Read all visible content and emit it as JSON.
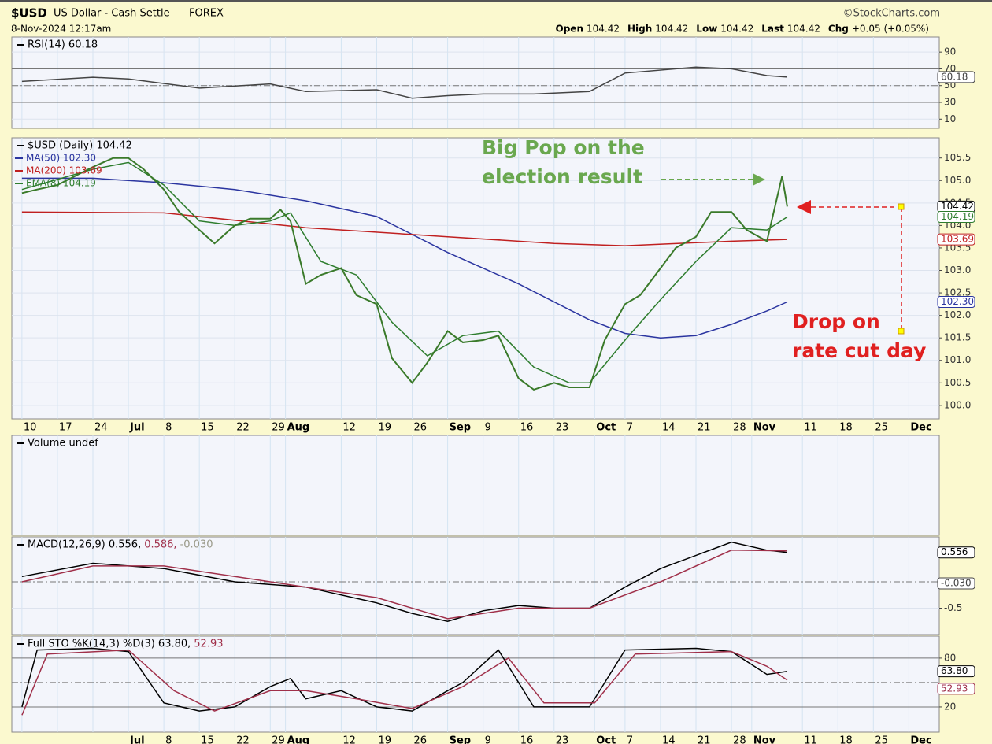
{
  "header": {
    "symbol": "$USD",
    "name": "US Dollar - Cash Settle",
    "exchange": "FOREX",
    "brand": "©StockCharts.com",
    "date": "8-Nov-2024 12:17am",
    "quote": [
      {
        "k": "Open",
        "v": "104.42"
      },
      {
        "k": "High",
        "v": "104.42"
      },
      {
        "k": "Low",
        "v": "104.42"
      },
      {
        "k": "Last",
        "v": "104.42"
      },
      {
        "k": "Chg",
        "v": "+0.05 (+0.05%)"
      }
    ]
  },
  "chart_data": [
    {
      "type": "line",
      "title": "RSI(14) 60.18",
      "xlim": [
        -2,
        181
      ],
      "ylim": [
        -1,
        108
      ],
      "yticks": [
        10,
        30,
        50,
        70,
        90
      ],
      "reference_lines": [
        30,
        50,
        70
      ],
      "series": [
        {
          "name": "RSI(14)",
          "color": "#444444",
          "x": [
            0,
            14,
            21,
            35,
            49,
            56,
            70,
            77,
            84,
            91,
            101,
            112,
            119,
            133,
            140,
            147,
            151
          ],
          "values": [
            55,
            60,
            58,
            47,
            52,
            43,
            45,
            35,
            38,
            40,
            40,
            43,
            65,
            72,
            70,
            62,
            60.18
          ]
        }
      ],
      "badges": [
        {
          "label": "60.18",
          "value": 60.18,
          "color": "#444444"
        }
      ]
    },
    {
      "type": "line",
      "title": "$USD (Daily) 104.42",
      "xlim": [
        -2,
        181
      ],
      "ylim": [
        99.7,
        105.95
      ],
      "yticks": [
        {
          "value": 100,
          "label": "100.0"
        },
        {
          "value": 100.5,
          "label": "100.5"
        },
        {
          "value": 101,
          "label": "101.0"
        },
        {
          "value": 101.5,
          "label": "101.5"
        },
        {
          "value": 102,
          "label": "102.0"
        },
        {
          "value": 102.5,
          "label": "102.5"
        },
        {
          "value": 103,
          "label": "103.0"
        },
        {
          "value": 103.5,
          "label": "103.5"
        },
        {
          "value": 104,
          "label": "104.0"
        },
        {
          "value": 104.5,
          "label": "104.5"
        },
        {
          "value": 105,
          "label": "105.0"
        },
        {
          "value": 105.5,
          "label": "105.5"
        }
      ],
      "xticks": [
        {
          "value": 0,
          "label": "10"
        },
        {
          "value": 7,
          "label": "17"
        },
        {
          "value": 14,
          "label": "24"
        },
        {
          "value": 21,
          "label": "Jul"
        },
        {
          "value": 28,
          "label": "8"
        },
        {
          "value": 35,
          "label": "15"
        },
        {
          "value": 42,
          "label": "22"
        },
        {
          "value": 49,
          "label": "29"
        },
        {
          "value": 52,
          "label": "Aug"
        },
        {
          "value": 63,
          "label": "12"
        },
        {
          "value": 70,
          "label": "19"
        },
        {
          "value": 77,
          "label": "26"
        },
        {
          "value": 84,
          "label": "Sep"
        },
        {
          "value": 91,
          "label": "9"
        },
        {
          "value": 98,
          "label": "16"
        },
        {
          "value": 105,
          "label": "23"
        },
        {
          "value": 113,
          "label": "Oct"
        },
        {
          "value": 119,
          "label": "7"
        },
        {
          "value": 126,
          "label": "14"
        },
        {
          "value": 133,
          "label": "21"
        },
        {
          "value": 140,
          "label": "28"
        },
        {
          "value": 144,
          "label": "Nov"
        },
        {
          "value": 154,
          "label": "11"
        },
        {
          "value": 161,
          "label": "18"
        },
        {
          "value": 168,
          "label": "25"
        },
        {
          "value": 175,
          "label": "Dec"
        }
      ],
      "series": [
        {
          "name": "MA(50) 102.30",
          "color": "#2b35a0",
          "x": [
            0,
            14,
            28,
            42,
            56,
            70,
            84,
            98,
            112,
            119,
            126,
            133,
            140,
            147,
            151
          ],
          "values": [
            105.05,
            105.05,
            104.95,
            104.8,
            104.55,
            104.2,
            103.4,
            102.7,
            101.9,
            101.6,
            101.5,
            101.55,
            101.8,
            102.1,
            102.3
          ]
        },
        {
          "name": "MA(200) 103.69",
          "color": "#c02020",
          "x": [
            0,
            28,
            56,
            84,
            105,
            119,
            140,
            151
          ],
          "values": [
            104.3,
            104.28,
            103.95,
            103.75,
            103.6,
            103.55,
            103.65,
            103.69
          ]
        },
        {
          "name": "EMA(8) 104.19",
          "color": "#2e7d2e",
          "x": [
            0,
            14,
            21,
            28,
            35,
            42,
            49,
            53,
            59,
            66,
            73,
            80,
            87,
            94,
            101,
            108,
            112,
            119,
            126,
            133,
            140,
            147,
            151
          ],
          "values": [
            104.8,
            105.25,
            105.4,
            104.9,
            104.1,
            104.0,
            104.1,
            104.28,
            103.2,
            102.9,
            101.85,
            101.1,
            101.55,
            101.65,
            100.85,
            100.5,
            100.5,
            101.45,
            102.35,
            103.2,
            103.95,
            103.9,
            104.19
          ]
        },
        {
          "name": "$USD (Daily)",
          "color": "#3a7a2a",
          "x": [
            0,
            3,
            7,
            14,
            18,
            21,
            24,
            28,
            31,
            35,
            38,
            42,
            45,
            49,
            51,
            53,
            56,
            59,
            63,
            66,
            70,
            73,
            77,
            80,
            84,
            87,
            91,
            94,
            98,
            101,
            105,
            108,
            112,
            115,
            119,
            122,
            126,
            129,
            133,
            136,
            140,
            143,
            147,
            150,
            151
          ],
          "values": [
            104.72,
            104.8,
            104.9,
            105.3,
            105.5,
            105.5,
            105.25,
            104.8,
            104.3,
            103.9,
            103.6,
            104.0,
            104.15,
            104.15,
            104.35,
            104.1,
            102.7,
            102.9,
            103.05,
            102.45,
            102.25,
            101.05,
            100.5,
            100.95,
            101.65,
            101.4,
            101.45,
            101.55,
            100.6,
            100.35,
            100.5,
            100.4,
            100.4,
            101.45,
            102.25,
            102.45,
            103.05,
            103.5,
            103.75,
            104.3,
            104.3,
            103.9,
            103.65,
            105.1,
            104.42
          ]
        }
      ],
      "badges": [
        {
          "label": "104.42",
          "value": 104.42,
          "color": "#000000"
        },
        {
          "label": "104.19",
          "value": 104.19,
          "color": "#2e7d2e"
        },
        {
          "label": "103.69",
          "value": 103.69,
          "color": "#c02020"
        },
        {
          "label": "102.30",
          "value": 102.3,
          "color": "#2b35a0"
        }
      ],
      "annotations": [
        "Big Pop on the",
        "election result",
        "Drop on",
        "rate cut day"
      ]
    },
    {
      "type": "empty",
      "title": "Volume undef",
      "xlim": [
        -2,
        181
      ]
    },
    {
      "type": "line",
      "title": "MACD(12,26,9) 0.556,",
      "title_signal": "0.586,",
      "title_hist": "-0.030",
      "xlim": [
        -2,
        181
      ],
      "ylim": [
        -1,
        0.85
      ],
      "yticks": [
        -0.5
      ],
      "reference_lines": [
        0
      ],
      "series": [
        {
          "name": "MACD",
          "color": "#000000",
          "x": [
            0,
            14,
            28,
            42,
            56,
            70,
            77,
            84,
            91,
            98,
            105,
            112,
            119,
            126,
            140,
            147,
            151
          ],
          "values": [
            0.1,
            0.35,
            0.25,
            0,
            -0.1,
            -0.4,
            -0.6,
            -0.75,
            -0.55,
            -0.45,
            -0.5,
            -0.5,
            -0.1,
            0.25,
            0.75,
            0.6,
            0.556
          ]
        },
        {
          "name": "Signal",
          "color": "#a0304a",
          "x": [
            0,
            14,
            28,
            42,
            56,
            70,
            84,
            98,
            112,
            126,
            140,
            151
          ],
          "values": [
            0,
            0.3,
            0.3,
            0.1,
            -0.1,
            -0.3,
            -0.7,
            -0.5,
            -0.5,
            0,
            0.6,
            0.586
          ]
        }
      ],
      "badges": [
        {
          "label": "0.556",
          "value": 0.556,
          "color": "#000000"
        },
        {
          "label": "-0.030",
          "value": -0.03,
          "color": "#444444"
        }
      ]
    },
    {
      "type": "line",
      "title": "Full STO %K(14,3) %D(3) 63.80,",
      "title_d": "52.93",
      "xlim": [
        -2,
        181
      ],
      "ylim": [
        -11,
        107
      ],
      "yticks": [
        20,
        80
      ],
      "reference_lines": [
        20,
        50,
        80
      ],
      "xticks": [
        {
          "value": 21,
          "label": "Jul"
        },
        {
          "value": 28,
          "label": "8"
        },
        {
          "value": 35,
          "label": "15"
        },
        {
          "value": 42,
          "label": "22"
        },
        {
          "value": 49,
          "label": "29"
        },
        {
          "value": 52,
          "label": "Aug"
        },
        {
          "value": 63,
          "label": "12"
        },
        {
          "value": 70,
          "label": "19"
        },
        {
          "value": 77,
          "label": "26"
        },
        {
          "value": 84,
          "label": "Sep"
        },
        {
          "value": 91,
          "label": "9"
        },
        {
          "value": 98,
          "label": "16"
        },
        {
          "value": 105,
          "label": "23"
        },
        {
          "value": 113,
          "label": "Oct"
        },
        {
          "value": 119,
          "label": "7"
        },
        {
          "value": 126,
          "label": "14"
        },
        {
          "value": 133,
          "label": "21"
        },
        {
          "value": 140,
          "label": "28"
        },
        {
          "value": 144,
          "label": "Nov"
        },
        {
          "value": 154,
          "label": "11"
        },
        {
          "value": 161,
          "label": "18"
        },
        {
          "value": 168,
          "label": "25"
        },
        {
          "value": 175,
          "label": "Dec"
        }
      ],
      "series": [
        {
          "name": "%K",
          "color": "#000000",
          "x": [
            0,
            3,
            14,
            21,
            28,
            35,
            42,
            49,
            53,
            56,
            63,
            70,
            77,
            84,
            87,
            94,
            101,
            112,
            119,
            133,
            140,
            147,
            151
          ],
          "values": [
            20,
            90,
            92,
            88,
            25,
            15,
            20,
            45,
            55,
            30,
            40,
            20,
            15,
            40,
            50,
            90,
            20,
            20,
            90,
            92,
            88,
            60,
            63.8
          ]
        },
        {
          "name": "%D",
          "color": "#a0304a",
          "x": [
            0,
            5,
            21,
            30,
            38,
            49,
            56,
            66,
            77,
            87,
            96,
            103,
            113,
            121,
            140,
            147,
            151
          ],
          "values": [
            10,
            85,
            90,
            40,
            15,
            40,
            40,
            30,
            18,
            45,
            80,
            25,
            25,
            85,
            88,
            70,
            52.93
          ]
        }
      ],
      "badges": [
        {
          "label": "63.80",
          "value": 63.8,
          "color": "#000000"
        },
        {
          "label": "52.93",
          "value": 52.93,
          "color": "#a0304a"
        }
      ]
    }
  ]
}
